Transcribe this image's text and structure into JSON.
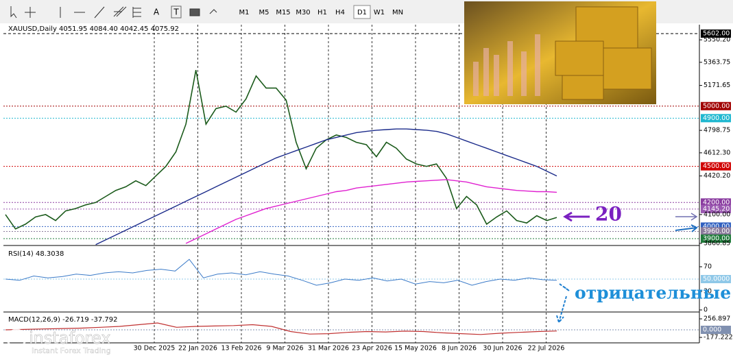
{
  "toolbar": {
    "timeframes": [
      "M1",
      "M5",
      "M15",
      "M30",
      "H1",
      "H4",
      "D1",
      "W1",
      "MN"
    ],
    "active": "D1",
    "text_tools": [
      "A",
      "T"
    ]
  },
  "chart": {
    "header": "XAUUSD,Daily  4051.95 4084.40 4042.45 4075.92",
    "ylim": [
      3843,
      5676
    ],
    "yticks": [
      {
        "value": 5602,
        "label": "5602.00",
        "color": "#000000",
        "style": "dashed"
      },
      {
        "value": 5550.2,
        "label": "5550.20"
      },
      {
        "value": 5363.75,
        "label": "5363.75"
      },
      {
        "value": 5171.65,
        "label": "5171.65"
      },
      {
        "value": 5000,
        "label": "5000.00",
        "color": "#a00000",
        "style": "solid"
      },
      {
        "value": 4900,
        "label": "4900.00",
        "color": "#20b8d0",
        "style": "dotted"
      },
      {
        "value": 4798.75,
        "label": "4798.75"
      },
      {
        "value": 4612.3,
        "label": "4612.30"
      },
      {
        "value": 4500,
        "label": "4500.00",
        "color": "#d00000",
        "style": "solid"
      },
      {
        "value": 4420.2,
        "label": "4420.20"
      },
      {
        "value": 4200,
        "label": "4200.00",
        "color": "#8a3ca0",
        "style": "solid"
      },
      {
        "value": 4145.2,
        "label": "4145.20",
        "color": "#9a58b0",
        "style": "solid"
      },
      {
        "value": 4100,
        "label": "4100.00"
      },
      {
        "value": 4000,
        "label": "4000.00",
        "color": "#3060c0",
        "style": "solid"
      },
      {
        "value": 3960,
        "label": "3960.00",
        "color": "#8a7a9a",
        "style": "solid"
      },
      {
        "value": 3900,
        "label": "3900.00",
        "color": "#1f7a3a",
        "style": "solid"
      },
      {
        "value": 3860.85,
        "label": "3860.85"
      }
    ],
    "dates": [
      "30 Dec 2025",
      "22 Jan 2026",
      "13 Feb 2026",
      "9 Mar 2026",
      "31 Mar 2026",
      "23 Apr 2026",
      "15 May 2026",
      "8 Jun 2026",
      "30 Jun 2026",
      "22 Jul 2026"
    ],
    "series": [
      {
        "name": "XAUUSD",
        "color": "#1a5a1a",
        "values": [
          4100,
          3980,
          4020,
          4080,
          4100,
          4050,
          4130,
          4150,
          4180,
          4200,
          4250,
          4300,
          4330,
          4380,
          4340,
          4420,
          4500,
          4620,
          4850,
          5300,
          4850,
          4980,
          5000,
          4950,
          5060,
          5250,
          5150,
          5150,
          5050,
          4700,
          4480,
          4650,
          4720,
          4760,
          4740,
          4700,
          4680,
          4580,
          4700,
          4650,
          4560,
          4520,
          4500,
          4520,
          4400,
          4150,
          4250,
          4180,
          4020,
          4080,
          4130,
          4050,
          4030,
          4090,
          4050,
          4075.92
        ]
      },
      {
        "name": "MA slow",
        "color": "#e020d0",
        "values": [
          null,
          null,
          null,
          null,
          null,
          null,
          null,
          null,
          null,
          null,
          null,
          null,
          null,
          null,
          null,
          null,
          null,
          null,
          3860,
          3900,
          3940,
          3980,
          4020,
          4060,
          4090,
          4120,
          4150,
          4170,
          4190,
          4210,
          4230,
          4250,
          4270,
          4290,
          4300,
          4320,
          4330,
          4340,
          4350,
          4360,
          4370,
          4375,
          4380,
          4385,
          4390,
          4380,
          4370,
          4350,
          4330,
          4320,
          4310,
          4300,
          4295,
          4290,
          4290,
          4285
        ]
      },
      {
        "name": "MA long",
        "color": "#1a2a8a",
        "values": [
          null,
          null,
          null,
          null,
          null,
          null,
          null,
          null,
          null,
          3850,
          3890,
          3930,
          3970,
          4010,
          4050,
          4090,
          4130,
          4170,
          4210,
          4250,
          4290,
          4330,
          4370,
          4410,
          4450,
          4490,
          4530,
          4570,
          4600,
          4630,
          4660,
          4690,
          4720,
          4740,
          4760,
          4780,
          4790,
          4800,
          4805,
          4810,
          4810,
          4805,
          4800,
          4790,
          4770,
          4740,
          4710,
          4680,
          4650,
          4620,
          4590,
          4560,
          4530,
          4500,
          4460,
          4420
        ]
      }
    ],
    "annotations": {
      "arrow_label": "20",
      "note": "отрицательные"
    }
  },
  "rsi": {
    "header": "RSI(14) 48.3038",
    "ylim": [
      0,
      100
    ],
    "yticks": [
      70,
      {
        "value": 50,
        "label": "50.0000",
        "color": "#8fc8e8"
      },
      30,
      0
    ],
    "color": "#3a7ac8",
    "values": [
      50,
      48,
      55,
      52,
      54,
      58,
      56,
      60,
      62,
      60,
      64,
      66,
      63,
      82,
      52,
      58,
      60,
      57,
      62,
      58,
      55,
      48,
      40,
      44,
      50,
      48,
      52,
      47,
      50,
      42,
      46,
      44,
      48,
      40,
      46,
      50,
      48,
      52,
      49,
      48
    ]
  },
  "macd": {
    "header": "MACD(12,26,9) -26.719 -37.792",
    "ylim": [
      -305,
      369
    ],
    "yticks": [
      {
        "value": 256.897,
        "label": "256.897"
      },
      {
        "value": 0,
        "label": "0.000",
        "color": "#8090b0"
      },
      {
        "value": -177.222,
        "label": "-177.222"
      }
    ],
    "color": "#c03030",
    "values": [
      0,
      10,
      20,
      30,
      40,
      60,
      80,
      120,
      160,
      60,
      80,
      90,
      100,
      120,
      80,
      -40,
      -100,
      -90,
      -60,
      -40,
      -50,
      -30,
      -40,
      -70,
      -90,
      -110,
      -80,
      -60,
      -40,
      -27
    ]
  },
  "watermark": {
    "brand": "instaforex",
    "tagline": "Instant Forex Trading"
  }
}
